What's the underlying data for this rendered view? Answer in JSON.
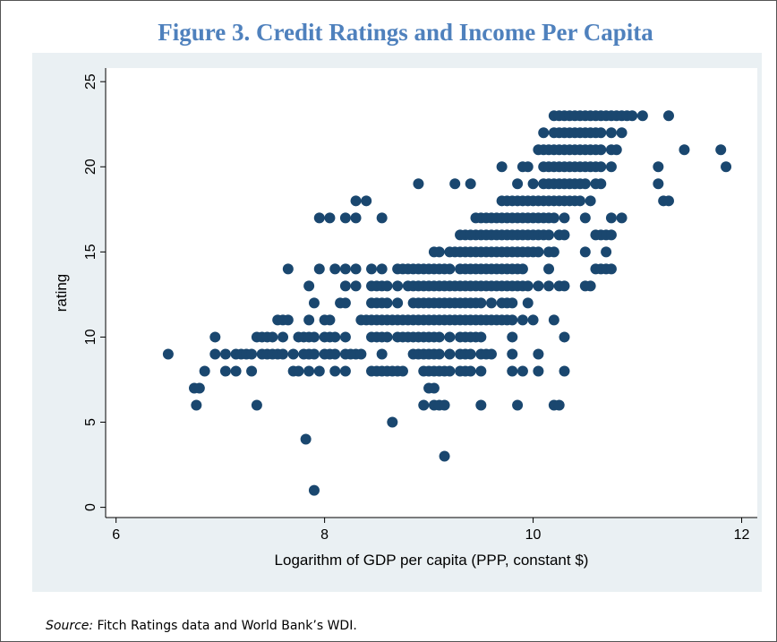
{
  "chart_data": {
    "type": "scatter",
    "title": "Figure 3. Credit Ratings and Income Per Capita",
    "x_label": "Logarithm of GDP per capita (PPP, constant $)",
    "y_label": "rating",
    "color": "#1a476f",
    "xlim": [
      5.9,
      12.15
    ],
    "xticks": [
      6,
      8,
      10,
      12
    ],
    "ylim": [
      -0.6,
      25.8
    ],
    "yticks": [
      0,
      5,
      10,
      15,
      20,
      25
    ],
    "x": [
      10.2,
      10.25,
      10.3,
      10.35,
      10.4,
      10.45,
      10.5,
      10.55,
      10.6,
      10.65,
      10.7,
      10.75,
      10.8,
      10.85,
      10.9,
      10.95,
      11.05,
      11.3,
      10.1,
      10.2,
      10.25,
      10.3,
      10.35,
      10.4,
      10.45,
      10.5,
      10.55,
      10.6,
      10.65,
      10.75,
      10.85,
      10.05,
      10.1,
      10.15,
      10.2,
      10.25,
      10.3,
      10.35,
      10.4,
      10.45,
      10.5,
      10.55,
      10.6,
      10.65,
      10.75,
      10.8,
      11.45,
      11.8,
      9.7,
      9.9,
      9.95,
      10.1,
      10.15,
      10.2,
      10.25,
      10.3,
      10.35,
      10.4,
      10.45,
      10.5,
      10.55,
      10.6,
      10.65,
      10.75,
      11.2,
      11.85,
      8.9,
      9.25,
      9.4,
      9.85,
      10.0,
      10.1,
      10.15,
      10.2,
      10.25,
      10.3,
      10.35,
      10.4,
      10.45,
      10.5,
      10.6,
      10.65,
      11.2,
      8.3,
      8.4,
      9.7,
      9.75,
      9.8,
      9.85,
      9.9,
      9.95,
      10.0,
      10.05,
      10.1,
      10.15,
      10.2,
      10.25,
      10.3,
      10.35,
      10.4,
      10.45,
      10.55,
      11.25,
      11.3,
      7.95,
      8.05,
      8.2,
      8.3,
      8.55,
      9.45,
      9.5,
      9.55,
      9.6,
      9.65,
      9.7,
      9.75,
      9.8,
      9.85,
      9.9,
      9.95,
      10.0,
      10.05,
      10.1,
      10.15,
      10.2,
      10.3,
      10.5,
      10.75,
      10.85,
      9.3,
      9.35,
      9.4,
      9.45,
      9.5,
      9.55,
      9.6,
      9.65,
      9.7,
      9.75,
      9.8,
      9.85,
      9.9,
      9.95,
      10.0,
      10.05,
      10.1,
      10.15,
      10.25,
      10.3,
      10.6,
      10.65,
      10.7,
      10.75,
      9.05,
      9.1,
      9.2,
      9.25,
      9.3,
      9.35,
      9.4,
      9.45,
      9.5,
      9.55,
      9.6,
      9.65,
      9.7,
      9.75,
      9.8,
      9.85,
      9.9,
      9.95,
      10.0,
      10.05,
      10.15,
      10.2,
      10.5,
      10.7,
      7.65,
      7.95,
      8.1,
      8.2,
      8.3,
      8.45,
      8.55,
      8.7,
      8.75,
      8.8,
      8.85,
      8.9,
      8.95,
      9.0,
      9.05,
      9.1,
      9.15,
      9.2,
      9.3,
      9.35,
      9.4,
      9.45,
      9.5,
      9.55,
      9.6,
      9.65,
      9.7,
      9.75,
      9.8,
      9.85,
      9.9,
      10.15,
      10.6,
      10.65,
      10.7,
      10.75,
      7.85,
      8.2,
      8.3,
      8.45,
      8.5,
      8.55,
      8.6,
      8.7,
      8.8,
      8.85,
      8.9,
      8.95,
      9.0,
      9.05,
      9.1,
      9.15,
      9.2,
      9.25,
      9.3,
      9.35,
      9.4,
      9.45,
      9.5,
      9.55,
      9.6,
      9.65,
      9.7,
      9.75,
      9.8,
      9.85,
      9.9,
      9.95,
      10.05,
      10.15,
      10.25,
      10.3,
      10.5,
      10.55,
      7.9,
      8.15,
      8.2,
      8.45,
      8.5,
      8.55,
      8.6,
      8.7,
      8.85,
      8.9,
      8.95,
      9.0,
      9.05,
      9.1,
      9.15,
      9.2,
      9.25,
      9.3,
      9.35,
      9.4,
      9.45,
      9.5,
      9.6,
      9.7,
      9.75,
      9.8,
      9.95,
      7.55,
      7.6,
      7.65,
      7.85,
      8.0,
      8.05,
      8.35,
      8.4,
      8.45,
      8.5,
      8.55,
      8.6,
      8.65,
      8.7,
      8.75,
      8.8,
      8.85,
      8.9,
      8.95,
      9.0,
      9.05,
      9.1,
      9.15,
      9.2,
      9.25,
      9.3,
      9.35,
      9.4,
      9.45,
      9.5,
      9.55,
      9.6,
      9.65,
      9.7,
      9.75,
      9.8,
      9.9,
      10.0,
      10.2,
      6.95,
      7.35,
      7.4,
      7.45,
      7.5,
      7.6,
      7.75,
      7.8,
      7.85,
      7.9,
      8.0,
      8.05,
      8.1,
      8.2,
      8.45,
      8.5,
      8.55,
      8.6,
      8.7,
      8.75,
      8.8,
      8.85,
      8.9,
      8.95,
      9.0,
      9.05,
      9.1,
      9.2,
      9.3,
      9.35,
      9.4,
      9.45,
      9.5,
      9.8,
      10.3,
      6.5,
      6.95,
      7.05,
      7.15,
      7.2,
      7.25,
      7.3,
      7.4,
      7.45,
      7.5,
      7.55,
      7.6,
      7.7,
      7.8,
      7.85,
      7.9,
      8.0,
      8.05,
      8.1,
      8.2,
      8.25,
      8.3,
      8.35,
      8.55,
      8.85,
      8.9,
      8.95,
      9.0,
      9.05,
      9.1,
      9.2,
      9.3,
      9.35,
      9.4,
      9.5,
      9.55,
      9.6,
      9.8,
      10.05,
      6.85,
      7.05,
      7.15,
      7.3,
      7.7,
      7.75,
      7.85,
      7.95,
      8.1,
      8.2,
      8.45,
      8.5,
      8.55,
      8.6,
      8.65,
      8.7,
      8.75,
      8.95,
      9.0,
      9.05,
      9.1,
      9.15,
      9.2,
      9.3,
      9.35,
      9.4,
      9.5,
      9.8,
      9.9,
      10.05,
      10.3,
      6.75,
      6.8,
      9.0,
      9.05,
      6.77,
      7.35,
      8.95,
      9.05,
      9.1,
      9.15,
      9.5,
      9.85,
      10.2,
      10.25,
      8.65,
      7.82,
      9.15,
      7.9
    ],
    "values": [
      23,
      23,
      23,
      23,
      23,
      23,
      23,
      23,
      23,
      23,
      23,
      23,
      23,
      23,
      23,
      23,
      23,
      23,
      22,
      22,
      22,
      22,
      22,
      22,
      22,
      22,
      22,
      22,
      22,
      22,
      22,
      21,
      21,
      21,
      21,
      21,
      21,
      21,
      21,
      21,
      21,
      21,
      21,
      21,
      21,
      21,
      21,
      21,
      20,
      20,
      20,
      20,
      20,
      20,
      20,
      20,
      20,
      20,
      20,
      20,
      20,
      20,
      20,
      20,
      20,
      20,
      19,
      19,
      19,
      19,
      19,
      19,
      19,
      19,
      19,
      19,
      19,
      19,
      19,
      19,
      19,
      19,
      19,
      18,
      18,
      18,
      18,
      18,
      18,
      18,
      18,
      18,
      18,
      18,
      18,
      18,
      18,
      18,
      18,
      18,
      18,
      18,
      18,
      18,
      17,
      17,
      17,
      17,
      17,
      17,
      17,
      17,
      17,
      17,
      17,
      17,
      17,
      17,
      17,
      17,
      17,
      17,
      17,
      17,
      17,
      17,
      17,
      17,
      17,
      16,
      16,
      16,
      16,
      16,
      16,
      16,
      16,
      16,
      16,
      16,
      16,
      16,
      16,
      16,
      16,
      16,
      16,
      16,
      16,
      16,
      16,
      16,
      16,
      15,
      15,
      15,
      15,
      15,
      15,
      15,
      15,
      15,
      15,
      15,
      15,
      15,
      15,
      15,
      15,
      15,
      15,
      15,
      15,
      15,
      15,
      15,
      15,
      14,
      14,
      14,
      14,
      14,
      14,
      14,
      14,
      14,
      14,
      14,
      14,
      14,
      14,
      14,
      14,
      14,
      14,
      14,
      14,
      14,
      14,
      14,
      14,
      14,
      14,
      14,
      14,
      14,
      14,
      14,
      14,
      14,
      14,
      14,
      14,
      13,
      13,
      13,
      13,
      13,
      13,
      13,
      13,
      13,
      13,
      13,
      13,
      13,
      13,
      13,
      13,
      13,
      13,
      13,
      13,
      13,
      13,
      13,
      13,
      13,
      13,
      13,
      13,
      13,
      13,
      13,
      13,
      13,
      13,
      13,
      13,
      13,
      13,
      12,
      12,
      12,
      12,
      12,
      12,
      12,
      12,
      12,
      12,
      12,
      12,
      12,
      12,
      12,
      12,
      12,
      12,
      12,
      12,
      12,
      12,
      12,
      12,
      12,
      12,
      12,
      11,
      11,
      11,
      11,
      11,
      11,
      11,
      11,
      11,
      11,
      11,
      11,
      11,
      11,
      11,
      11,
      11,
      11,
      11,
      11,
      11,
      11,
      11,
      11,
      11,
      11,
      11,
      11,
      11,
      11,
      11,
      11,
      11,
      11,
      11,
      11,
      11,
      11,
      11,
      10,
      10,
      10,
      10,
      10,
      10,
      10,
      10,
      10,
      10,
      10,
      10,
      10,
      10,
      10,
      10,
      10,
      10,
      10,
      10,
      10,
      10,
      10,
      10,
      10,
      10,
      10,
      10,
      10,
      10,
      10,
      10,
      10,
      10,
      10,
      9,
      9,
      9,
      9,
      9,
      9,
      9,
      9,
      9,
      9,
      9,
      9,
      9,
      9,
      9,
      9,
      9,
      9,
      9,
      9,
      9,
      9,
      9,
      9,
      9,
      9,
      9,
      9,
      9,
      9,
      9,
      9,
      9,
      9,
      9,
      9,
      9,
      9,
      9,
      8,
      8,
      8,
      8,
      8,
      8,
      8,
      8,
      8,
      8,
      8,
      8,
      8,
      8,
      8,
      8,
      8,
      8,
      8,
      8,
      8,
      8,
      8,
      8,
      8,
      8,
      8,
      8,
      8,
      8,
      8,
      7,
      7,
      7,
      7,
      6,
      6,
      6,
      6,
      6,
      6,
      6,
      6,
      6,
      6,
      5,
      4,
      3,
      1
    ]
  },
  "source_label": "Source:",
  "source_text": " Fitch Ratings data and World Bank’s WDI."
}
